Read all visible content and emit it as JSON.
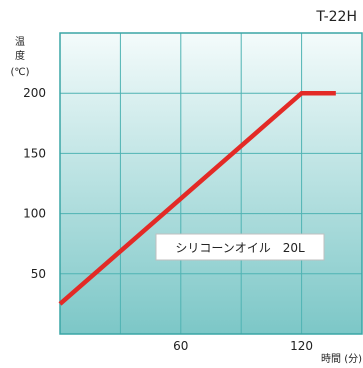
{
  "chart_data": {
    "type": "line",
    "model_label": "T-22H",
    "ylabel_chars": [
      "温",
      "度"
    ],
    "ylabel_unit": "(℃)",
    "xlabel": "時間 (分)",
    "xlim": [
      0,
      150
    ],
    "ylim": [
      0,
      250
    ],
    "x_ticks": [
      {
        "value": 60,
        "label": "60"
      },
      {
        "value": 120,
        "label": "120"
      }
    ],
    "y_ticks": [
      {
        "value": 50,
        "label": "50"
      },
      {
        "value": 100,
        "label": "100"
      },
      {
        "value": 150,
        "label": "150"
      },
      {
        "value": 200,
        "label": "200"
      }
    ],
    "grid_x": [
      30,
      60,
      90,
      120
    ],
    "grid_y": [
      50,
      100,
      150,
      200
    ],
    "grid": true,
    "series": [
      {
        "name": "シリコーンオイル　20L",
        "x": [
          0,
          120,
          137
        ],
        "y": [
          25,
          200,
          200
        ]
      }
    ],
    "colors": {
      "plot_top": "#f4fbfb",
      "plot_bottom": "#7cc7c7",
      "grid": "#4fb3b3",
      "frame": "#3aa5a5",
      "line": "#e32a26",
      "label_box_fill": "#ffffff",
      "label_box_border": "#bfbfbf"
    }
  }
}
